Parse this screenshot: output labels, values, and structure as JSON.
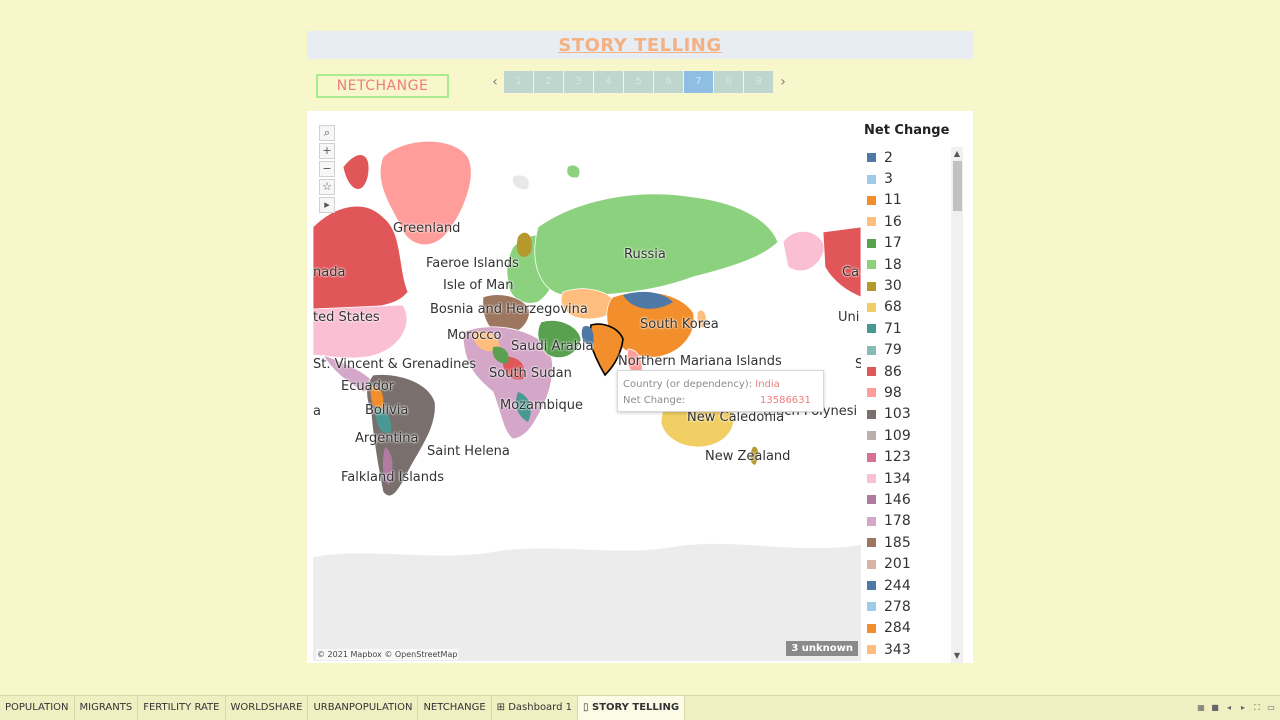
{
  "title": "STORY TELLING",
  "caption": "NETCHANGE",
  "nav": {
    "prev_icon": "chevron-left-icon",
    "next_icon": "chevron-right-icon",
    "points": [
      "1",
      "2",
      "3",
      "4",
      "5",
      "6",
      "7",
      "8",
      "9"
    ],
    "active_index": 6
  },
  "map": {
    "tools": [
      "⌕",
      "+",
      "−",
      "☆",
      "▸"
    ],
    "attribution": "© 2021 Mapbox © OpenStreetMap",
    "unknown_badge": "3 unknown",
    "labels": [
      {
        "text": "Greenland",
        "id": "greenland"
      },
      {
        "text": "nada",
        "id": "canada"
      },
      {
        "text": "Faeroe Islands",
        "id": "faeroe"
      },
      {
        "text": "Isle of Man",
        "id": "isle-of-man"
      },
      {
        "text": "Russia",
        "id": "russia"
      },
      {
        "text": "Ca",
        "id": "ca-east"
      },
      {
        "text": "ted States",
        "id": "united-states"
      },
      {
        "text": "Bosnia and Herzegovina",
        "id": "bosnia"
      },
      {
        "text": "South Korea",
        "id": "south-korea"
      },
      {
        "text": "Uni",
        "id": "uni-east"
      },
      {
        "text": "Morocco",
        "id": "morocco"
      },
      {
        "text": "Saudi Arabia",
        "id": "saudi-arabia"
      },
      {
        "text": "St. Vincent & Grenadines",
        "id": "st-vincent"
      },
      {
        "text": "Northern Mariana Islands",
        "id": "northern-mariana"
      },
      {
        "text": "S",
        "id": "s-east"
      },
      {
        "text": "Ecuador",
        "id": "ecuador"
      },
      {
        "text": "South Sudan",
        "id": "south-sudan"
      },
      {
        "text": "a",
        "id": "a-west"
      },
      {
        "text": "Bolivia",
        "id": "bolivia"
      },
      {
        "text": "Mozambique",
        "id": "mozambique"
      },
      {
        "text": "rench Polynesi",
        "id": "french-polynesia"
      },
      {
        "text": "New Caledonia",
        "id": "new-caledonia"
      },
      {
        "text": "Argentina",
        "id": "argentina"
      },
      {
        "text": "Saint Helena",
        "id": "saint-helena"
      },
      {
        "text": "New Zealand",
        "id": "new-zealand"
      },
      {
        "text": "Falkland Islands",
        "id": "falkland"
      }
    ]
  },
  "tooltip": {
    "country_key": "Country (or dependency):",
    "country_value": "India",
    "net_key": "Net Change:",
    "net_value": "13586631"
  },
  "legend": {
    "title": "Net Change",
    "items": [
      {
        "label": "2",
        "color": "#4e79a7"
      },
      {
        "label": "3",
        "color": "#a0cbe8"
      },
      {
        "label": "11",
        "color": "#f28e2b"
      },
      {
        "label": "16",
        "color": "#ffbe7d"
      },
      {
        "label": "17",
        "color": "#59a14f"
      },
      {
        "label": "18",
        "color": "#8cd17d"
      },
      {
        "label": "30",
        "color": "#b6992d"
      },
      {
        "label": "68",
        "color": "#f1ce63"
      },
      {
        "label": "71",
        "color": "#499894"
      },
      {
        "label": "79",
        "color": "#86bcb6"
      },
      {
        "label": "86",
        "color": "#e15759"
      },
      {
        "label": "98",
        "color": "#ff9d9a"
      },
      {
        "label": "103",
        "color": "#79706e"
      },
      {
        "label": "109",
        "color": "#bab0ac"
      },
      {
        "label": "123",
        "color": "#d37295"
      },
      {
        "label": "134",
        "color": "#fabfd2"
      },
      {
        "label": "146",
        "color": "#b07aa1"
      },
      {
        "label": "178",
        "color": "#d4a6c8"
      },
      {
        "label": "185",
        "color": "#9d7660"
      },
      {
        "label": "201",
        "color": "#d7b5a6"
      },
      {
        "label": "244",
        "color": "#4e79a7"
      },
      {
        "label": "278",
        "color": "#a0cbe8"
      },
      {
        "label": "284",
        "color": "#f28e2b"
      },
      {
        "label": "343",
        "color": "#ffbe7d"
      }
    ]
  },
  "tabs": [
    {
      "label": "POPULATION",
      "active": false
    },
    {
      "label": "MIGRANTS",
      "active": false
    },
    {
      "label": "FERTILITY RATE",
      "active": false
    },
    {
      "label": "WORLDSHARE",
      "active": false
    },
    {
      "label": "URBANPOPULATION",
      "active": false
    },
    {
      "label": "NETCHANGE",
      "active": false
    },
    {
      "label": "⊞ Dashboard 1",
      "active": false
    },
    {
      "label": "▯ STORY TELLING",
      "active": true
    }
  ]
}
